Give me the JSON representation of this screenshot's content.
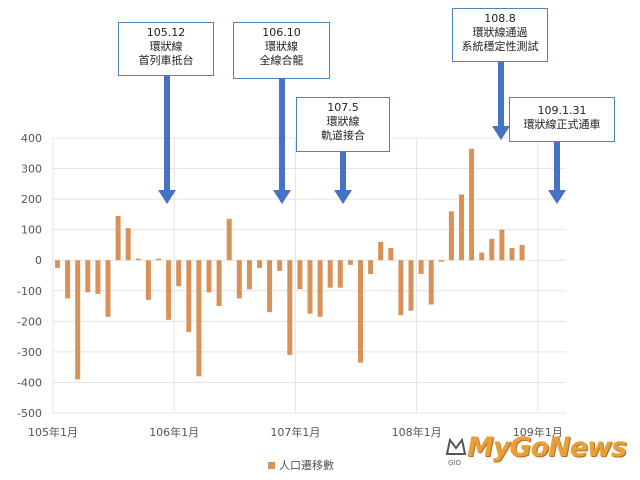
{
  "chart_data": {
    "type": "bar",
    "series": [
      {
        "name": "人口遷移數",
        "color": "#d9915a",
        "values": [
          -25,
          -125,
          -390,
          -105,
          -110,
          -185,
          145,
          105,
          5,
          -130,
          5,
          -195,
          -85,
          -235,
          -380,
          -105,
          -150,
          135,
          -125,
          -95,
          -25,
          -170,
          -35,
          -310,
          -95,
          -175,
          -185,
          -90,
          -90,
          -15,
          -335,
          -45,
          60,
          40,
          -180,
          -165,
          -45,
          -145,
          -5,
          160,
          215,
          365,
          25,
          70,
          100,
          40,
          50
        ]
      }
    ],
    "ylim": [
      -500,
      400
    ],
    "yticks": [
      "400",
      "300",
      "200",
      "100",
      "0",
      "-100",
      "-200",
      "-300",
      "-400",
      "-500"
    ],
    "xtick_labels": [
      {
        "label": "105年1月",
        "index": 0
      },
      {
        "label": "106年1月",
        "index": 12
      },
      {
        "label": "107年1月",
        "index": 24
      },
      {
        "label": "108年1月",
        "index": 36
      },
      {
        "label": "109年1月",
        "index": 48
      }
    ],
    "legend": "bottom",
    "grid": true
  },
  "annotations": [
    {
      "date": "105.12",
      "text": "環狀線",
      "text2": "首列車抵台"
    },
    {
      "date": "106.10",
      "text": "環狀線",
      "text2": "全線合龍"
    },
    {
      "date": "107.5",
      "text": "環狀線",
      "text2": "軌道接合"
    },
    {
      "date": "108.8",
      "text": "環狀線通過",
      "text2": "系統穩定性測試"
    },
    {
      "date": "109.1.31",
      "text": "環狀線正式通車",
      "text2": ""
    }
  ],
  "legend_label": "人口遷移數",
  "logo": {
    "text": "MyGoNews",
    "sub": "GIO"
  }
}
